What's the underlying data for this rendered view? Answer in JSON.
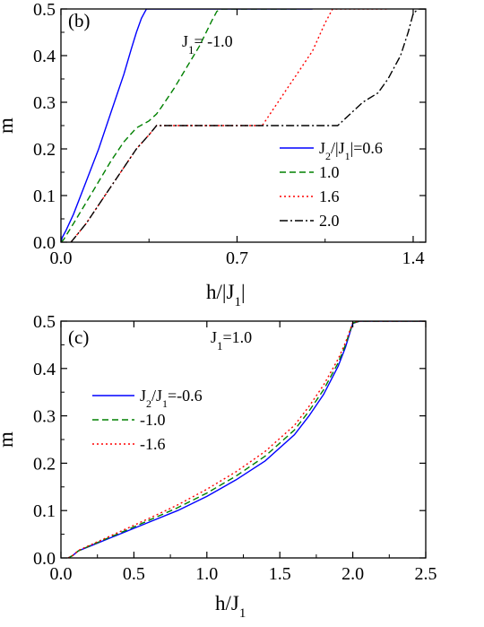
{
  "chart_data": [
    {
      "type": "line",
      "panel_label": "(b)",
      "annotation_html": "J<tspan baseline-shift='sub' font-size='13'>1</tspan>= -1.0",
      "xlabel_html": "h/|J<tspan baseline-shift='sub' font-size='15'>1</tspan>|",
      "ylabel": "m",
      "xlim": [
        0,
        1.45
      ],
      "ylim": [
        0,
        0.5
      ],
      "xticks": [
        0.0,
        0.7,
        1.4
      ],
      "xtick_labels": [
        "0.0",
        "0.7",
        "1.4"
      ],
      "xminor": [
        0.35,
        1.05
      ],
      "yticks": [
        0.0,
        0.1,
        0.2,
        0.3,
        0.4,
        0.5
      ],
      "ytick_labels": [
        "0.0",
        "0.1",
        "0.2",
        "0.3",
        "0.4",
        "0.5"
      ],
      "legend_position": "bottom-right",
      "series": [
        {
          "legend_html": "J<tspan baseline-shift='sub' font-size='12'>2</tspan>/|J<tspan baseline-shift='sub' font-size='12'>1</tspan>|=0.6",
          "color": "#0000ff",
          "dash": "",
          "x": [
            0,
            0.005,
            0.02,
            0.05,
            0.1,
            0.15,
            0.2,
            0.25,
            0.28,
            0.3,
            0.32,
            0.33,
            0.34,
            0.36,
            0.7,
            1.0
          ],
          "y": [
            0,
            0.01,
            0.025,
            0.06,
            0.13,
            0.2,
            0.28,
            0.36,
            0.415,
            0.45,
            0.48,
            0.49,
            0.5,
            0.5,
            0.5,
            0.5
          ]
        },
        {
          "legend_html": "1.0",
          "color": "#008000",
          "dash": "7,4",
          "x": [
            0,
            0.01,
            0.05,
            0.1,
            0.15,
            0.2,
            0.25,
            0.3,
            0.35,
            0.38,
            0.4,
            0.45,
            0.5,
            0.55,
            0.6,
            0.62,
            0.64,
            0.7,
            0.95
          ],
          "y": [
            0,
            0.005,
            0.04,
            0.085,
            0.13,
            0.175,
            0.215,
            0.245,
            0.26,
            0.275,
            0.29,
            0.33,
            0.375,
            0.42,
            0.475,
            0.495,
            0.5,
            0.5,
            0.5
          ]
        },
        {
          "legend_html": "1.6",
          "color": "#ff0000",
          "dash": "2,3",
          "x": [
            0.04,
            0.1,
            0.2,
            0.3,
            0.35,
            0.38,
            0.5,
            0.7,
            0.8,
            0.85,
            0.9,
            0.95,
            1.0,
            1.05,
            1.08,
            1.1,
            1.2,
            1.3
          ],
          "y": [
            0,
            0.04,
            0.12,
            0.2,
            0.23,
            0.25,
            0.25,
            0.25,
            0.25,
            0.29,
            0.33,
            0.37,
            0.41,
            0.47,
            0.5,
            0.5,
            0.5,
            0.5
          ]
        },
        {
          "legend_html": "2.0",
          "color": "#000000",
          "dash": "9,3,2,3",
          "x": [
            0.04,
            0.1,
            0.2,
            0.3,
            0.35,
            0.38,
            0.6,
            0.9,
            1.1,
            1.14,
            1.2,
            1.26,
            1.3,
            1.35,
            1.38,
            1.4,
            1.42,
            1.45
          ],
          "y": [
            0,
            0.04,
            0.12,
            0.2,
            0.23,
            0.25,
            0.25,
            0.25,
            0.25,
            0.27,
            0.3,
            0.32,
            0.35,
            0.4,
            0.45,
            0.49,
            0.5,
            0.5
          ]
        }
      ]
    },
    {
      "type": "line",
      "panel_label": "(c)",
      "annotation_html": "J<tspan baseline-shift='sub' font-size='13'>1</tspan>=1.0",
      "xlabel_html": "h/J<tspan baseline-shift='sub' font-size='15'>1</tspan>",
      "ylabel": "m",
      "xlim": [
        0,
        2.5
      ],
      "ylim": [
        0,
        0.5
      ],
      "xticks": [
        0.0,
        0.5,
        1.0,
        1.5,
        2.0,
        2.5
      ],
      "xtick_labels": [
        "0.0",
        "0.5",
        "1.0",
        "1.5",
        "2.0",
        "2.5"
      ],
      "xminor": [
        0.25,
        0.75,
        1.25,
        1.75,
        2.25
      ],
      "yticks": [
        0.0,
        0.1,
        0.2,
        0.3,
        0.4,
        0.5
      ],
      "ytick_labels": [
        "0.0",
        "0.1",
        "0.2",
        "0.3",
        "0.4",
        "0.5"
      ],
      "legend_position": "center-left",
      "series": [
        {
          "legend_html": "J<tspan baseline-shift='sub' font-size='12'>2</tspan>/J<tspan baseline-shift='sub' font-size='12'>1</tspan>=-0.6",
          "color": "#0000ff",
          "dash": "",
          "x": [
            0.05,
            0.08,
            0.12,
            0.2,
            0.4,
            0.6,
            0.8,
            1.0,
            1.2,
            1.4,
            1.6,
            1.7,
            1.8,
            1.9,
            1.95,
            1.98,
            2.0,
            2.05,
            2.5
          ],
          "y": [
            0,
            0.005,
            0.015,
            0.025,
            0.05,
            0.075,
            0.1,
            0.13,
            0.165,
            0.205,
            0.26,
            0.3,
            0.345,
            0.405,
            0.445,
            0.475,
            0.495,
            0.5,
            0.5
          ]
        },
        {
          "legend_html": "-1.0",
          "color": "#008000",
          "dash": "7,4",
          "x": [
            0.05,
            0.08,
            0.12,
            0.2,
            0.4,
            0.6,
            0.8,
            1.0,
            1.2,
            1.4,
            1.6,
            1.7,
            1.8,
            1.9,
            1.95,
            1.98,
            2.0,
            2.05,
            2.5
          ],
          "y": [
            0,
            0.005,
            0.015,
            0.026,
            0.052,
            0.079,
            0.106,
            0.137,
            0.173,
            0.215,
            0.27,
            0.31,
            0.355,
            0.412,
            0.45,
            0.478,
            0.496,
            0.5,
            0.5
          ]
        },
        {
          "legend_html": "-1.6",
          "color": "#ff0000",
          "dash": "2,3",
          "x": [
            0.05,
            0.08,
            0.12,
            0.2,
            0.4,
            0.6,
            0.8,
            1.0,
            1.2,
            1.4,
            1.6,
            1.7,
            1.8,
            1.9,
            1.95,
            1.98,
            2.0,
            2.05,
            2.5
          ],
          "y": [
            0,
            0.005,
            0.016,
            0.027,
            0.055,
            0.083,
            0.112,
            0.145,
            0.182,
            0.225,
            0.28,
            0.32,
            0.365,
            0.42,
            0.455,
            0.48,
            0.497,
            0.5,
            0.5
          ]
        }
      ]
    }
  ]
}
